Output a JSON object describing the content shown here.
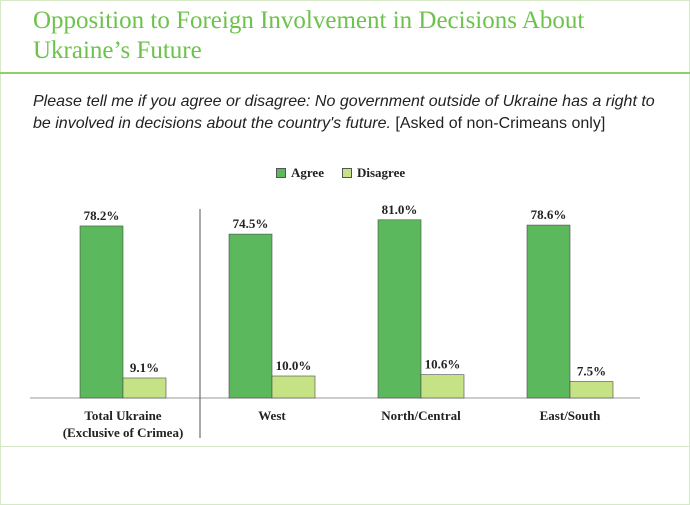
{
  "title": "Opposition to Foreign Involvement in Decisions About Ukraine’s Future",
  "question": {
    "text": "Please tell me if you agree or disagree: No government outside of Ukraine has a right to be involved in decisions about the country's future.",
    "note": "[Asked of non-Crimeans only]"
  },
  "colors": {
    "agree": "#5cb85c",
    "disagree": "#c5e384",
    "title": "#6cc24a"
  },
  "chart_data": {
    "type": "bar",
    "categories": [
      "Total Ukraine (Exclusive of Crimea)",
      "West",
      "North/Central",
      "East/South"
    ],
    "category_lines": [
      [
        "Total Ukraine",
        "(Exclusive of Crimea)"
      ],
      [
        "West"
      ],
      [
        "North/Central"
      ],
      [
        "East/South"
      ]
    ],
    "series": [
      {
        "name": "Agree",
        "values": [
          78.2,
          74.5,
          81.0,
          78.6
        ],
        "labels": [
          "78.2%",
          "74.5%",
          "81.0%",
          "78.6%"
        ]
      },
      {
        "name": "Disagree",
        "values": [
          9.1,
          10.0,
          10.6,
          7.5
        ],
        "labels": [
          "9.1%",
          "10.0%",
          "10.6%",
          "7.5%"
        ]
      }
    ],
    "ylim": [
      0,
      100
    ],
    "legend": "top-center",
    "grid": false
  }
}
